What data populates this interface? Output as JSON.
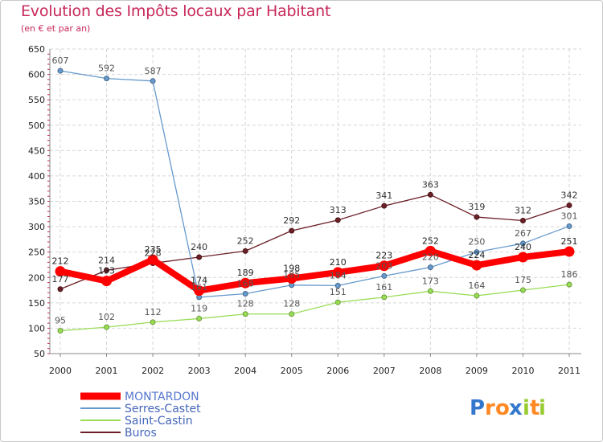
{
  "chart_data": {
    "type": "line",
    "title": "Evolution des Impôts locaux par Habitant",
    "subtitle": "(en € et par an)",
    "xlabel": "",
    "ylabel": "",
    "categories": [
      "2000",
      "2001",
      "2002",
      "2003",
      "2004",
      "2005",
      "2006",
      "2007",
      "2008",
      "2009",
      "2010",
      "2011"
    ],
    "ylim": [
      50,
      650
    ],
    "yticks": [
      50,
      100,
      150,
      200,
      250,
      300,
      350,
      400,
      450,
      500,
      550,
      600,
      650
    ],
    "grid": true,
    "legend_position": "bottom-left",
    "series": [
      {
        "name": "Buros",
        "color": "#6b1f26",
        "values": [
          177,
          214,
          228,
          240,
          252,
          292,
          313,
          341,
          363,
          319,
          312,
          342
        ]
      },
      {
        "name": "Saint-Castin",
        "color": "#99dd55",
        "values": [
          95,
          102,
          112,
          119,
          128,
          128,
          151,
          161,
          173,
          164,
          175,
          186
        ]
      },
      {
        "name": "Serres-Castet",
        "color": "#6699cc",
        "values": [
          607,
          592,
          587,
          161,
          168,
          185,
          184,
          203,
          220,
          250,
          267,
          301
        ]
      },
      {
        "name": "MONTARDON",
        "color": "#ff0000",
        "values": [
          212,
          193,
          235,
          174,
          189,
          198,
          210,
          223,
          252,
          224,
          240,
          251
        ]
      }
    ],
    "legend_order": [
      "MONTARDON",
      "Serres-Castet",
      "Saint-Castin",
      "Buros"
    ]
  },
  "logo": {
    "text": "Proxiti",
    "letters": [
      "P",
      "r",
      "o",
      "x",
      "i",
      "t",
      "i"
    ]
  }
}
